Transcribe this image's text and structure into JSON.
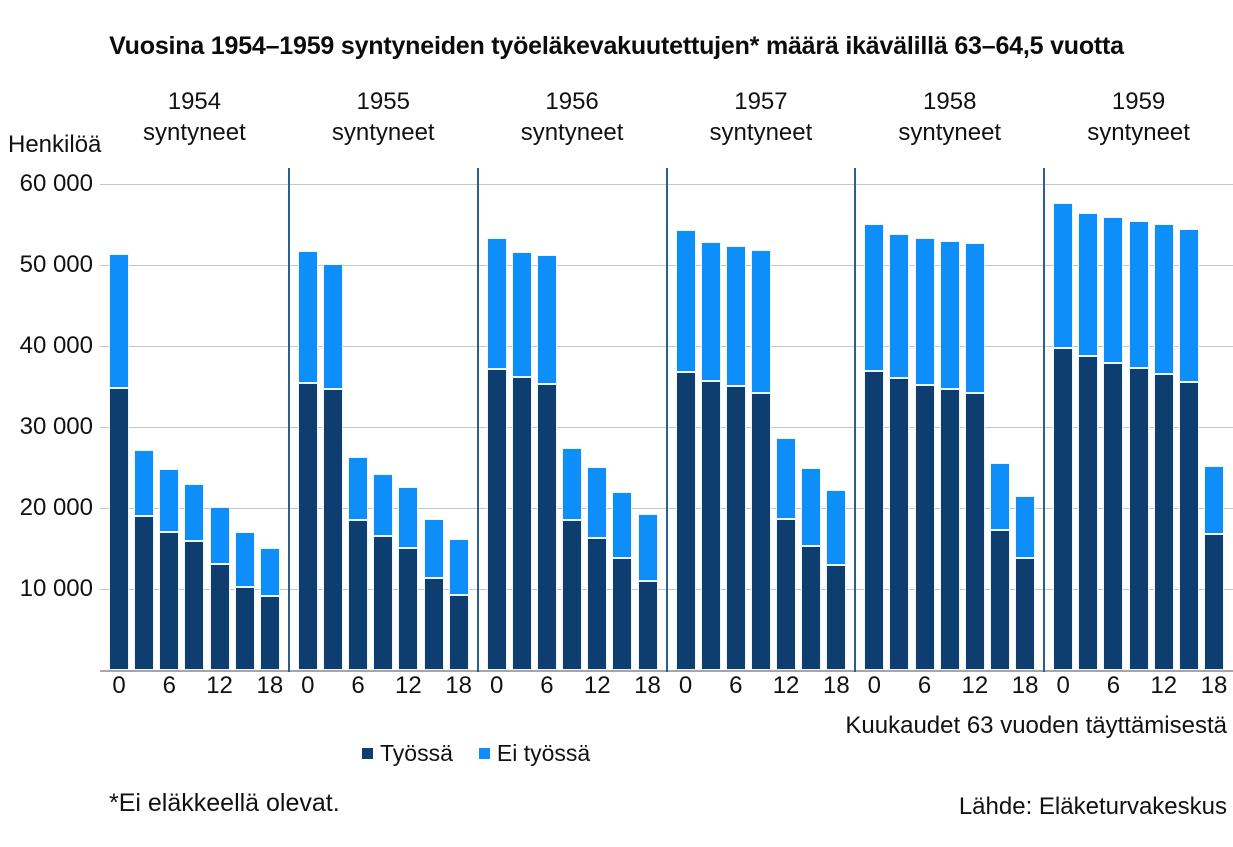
{
  "title": "Vuosina 1954–1959 syntyneiden työeläkevakuutettujen* määrä ikävälillä 63–64,5 vuotta",
  "y_axis": {
    "label": "Henkilöä",
    "ticks": [
      {
        "label": "60 000",
        "value": 60000
      },
      {
        "label": "50 000",
        "value": 50000
      },
      {
        "label": "40 000",
        "value": 40000
      },
      {
        "label": "30 000",
        "value": 30000
      },
      {
        "label": "20 000",
        "value": 20000
      },
      {
        "label": "10 000",
        "value": 10000
      }
    ]
  },
  "x_axis": {
    "title": "Kuukaudet 63 vuoden täyttämisestä",
    "labeled_months": [
      0,
      6,
      12,
      18
    ]
  },
  "legend": {
    "items": [
      {
        "label": "Työssä",
        "color": "#0e3e6f"
      },
      {
        "label": "Ei työssä",
        "color": "#0d8ef9"
      }
    ]
  },
  "footnote": "*Ei eläkkeellä olevat.",
  "source": "Lähde: Eläketurvakeskus",
  "colors": {
    "tyossa": "#0e3e6f",
    "ei_tyossa": "#0d8ef9",
    "gridline": "#c6c6c6",
    "axis": "#a6a6a6",
    "panel_separator": "#29608e"
  },
  "chart_data": {
    "type": "bar",
    "stacked": true,
    "ylim": [
      0,
      60000
    ],
    "grid": "horizontal",
    "legend_position": "bottom",
    "months": [
      0,
      3,
      6,
      9,
      12,
      15,
      18
    ],
    "series_names": [
      "Työssä",
      "Ei työssä"
    ],
    "panels": [
      {
        "year": "1954",
        "subtitle": "syntyneet",
        "tyossa": [
          34800,
          19000,
          17000,
          15900,
          13100,
          10300,
          9100
        ],
        "ei_tyossa": [
          16500,
          8200,
          7800,
          7100,
          7000,
          6700,
          6000
        ]
      },
      {
        "year": "1955",
        "subtitle": "syntyneet",
        "tyossa": [
          35400,
          34700,
          18500,
          16600,
          15000,
          11400,
          9200
        ],
        "ei_tyossa": [
          16300,
          15400,
          7800,
          7600,
          7600,
          7200,
          7000
        ]
      },
      {
        "year": "1956",
        "subtitle": "syntyneet",
        "tyossa": [
          37200,
          36200,
          35300,
          18500,
          16300,
          13800,
          11000
        ],
        "ei_tyossa": [
          16100,
          15400,
          15900,
          8900,
          8700,
          8200,
          8200
        ]
      },
      {
        "year": "1957",
        "subtitle": "syntyneet",
        "tyossa": [
          36800,
          35700,
          35000,
          34200,
          18700,
          15300,
          13000
        ],
        "ei_tyossa": [
          17500,
          17200,
          17400,
          17600,
          10000,
          9600,
          9200
        ]
      },
      {
        "year": "1958",
        "subtitle": "syntyneet",
        "tyossa": [
          36900,
          36000,
          35200,
          34700,
          34200,
          17300,
          13800
        ],
        "ei_tyossa": [
          18100,
          17800,
          18100,
          18300,
          18500,
          8300,
          7700
        ]
      },
      {
        "year": "1959",
        "subtitle": "syntyneet",
        "tyossa": [
          39800,
          38800,
          37900,
          37300,
          36600,
          35500,
          16800
        ],
        "ei_tyossa": [
          17800,
          17600,
          18000,
          18100,
          18500,
          18900,
          8400
        ]
      }
    ]
  }
}
